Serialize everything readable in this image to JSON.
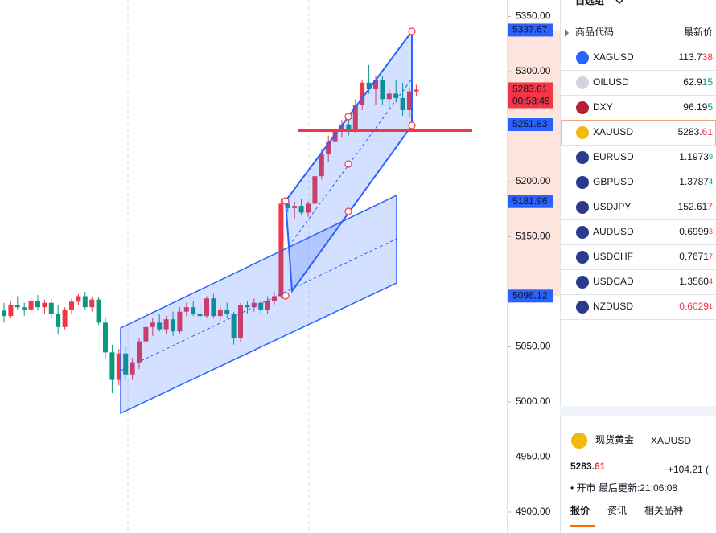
{
  "chart_data": {
    "type": "candlestick",
    "up_color": "#f23645",
    "down_color": "#089981",
    "ylim": [
      4881,
      5365
    ],
    "yticks": [
      {
        "value": 5350,
        "label": "5350.00"
      },
      {
        "value": 5300,
        "label": "5300.00"
      },
      {
        "value": 5200,
        "label": "5200.00"
      },
      {
        "value": 5150,
        "label": "5150.00"
      },
      {
        "value": 5050,
        "label": "5050.00"
      },
      {
        "value": 5000,
        "label": "5000.00"
      },
      {
        "value": 4950,
        "label": "4950.00"
      },
      {
        "value": 4900,
        "label": "4900.00"
      }
    ],
    "open": [
      5083,
      5078,
      5088,
      5086,
      5084,
      5092,
      5086,
      5090,
      5080,
      5068,
      5084,
      5091,
      5096,
      5086,
      5093,
      5072,
      5045,
      5020,
      5044,
      5025,
      5036,
      5055,
      5068,
      5072,
      5066,
      5075,
      5064,
      5082,
      5086,
      5080,
      5078,
      5094,
      5078,
      5084,
      5080,
      5058,
      5088,
      5086,
      5090,
      5084,
      5092,
      5096,
      5180,
      5176,
      5178,
      5172,
      5180,
      5205,
      5225,
      5236,
      5246,
      5252,
      5248,
      5270,
      5290,
      5284,
      5292,
      5275,
      5280,
      5276,
      5265,
      5282
    ],
    "high": [
      5090,
      5091,
      5096,
      5090,
      5095,
      5097,
      5093,
      5094,
      5088,
      5086,
      5094,
      5098,
      5100,
      5095,
      5095,
      5076,
      5052,
      5048,
      5050,
      5040,
      5058,
      5072,
      5076,
      5080,
      5078,
      5082,
      5086,
      5090,
      5092,
      5086,
      5096,
      5098,
      5088,
      5090,
      5082,
      5090,
      5092,
      5094,
      5092,
      5096,
      5100,
      5185,
      5186,
      5182,
      5184,
      5182,
      5208,
      5230,
      5242,
      5250,
      5256,
      5262,
      5275,
      5292,
      5306,
      5296,
      5296,
      5284,
      5292,
      5290,
      5285,
      5288
    ],
    "low": [
      5072,
      5076,
      5084,
      5078,
      5082,
      5083,
      5080,
      5076,
      5062,
      5066,
      5080,
      5088,
      5084,
      5082,
      5070,
      5040,
      5008,
      5015,
      5020,
      5020,
      5030,
      5052,
      5060,
      5064,
      5062,
      5060,
      5062,
      5078,
      5078,
      5072,
      5076,
      5076,
      5074,
      5076,
      5052,
      5054,
      5080,
      5082,
      5080,
      5080,
      5088,
      5094,
      5172,
      5166,
      5170,
      5168,
      5178,
      5202,
      5218,
      5228,
      5240,
      5242,
      5244,
      5265,
      5280,
      5270,
      5270,
      5266,
      5272,
      5260,
      5258,
      5278
    ],
    "close": [
      5078,
      5088,
      5086,
      5084,
      5092,
      5086,
      5090,
      5080,
      5068,
      5084,
      5091,
      5096,
      5086,
      5093,
      5072,
      5045,
      5020,
      5044,
      5025,
      5036,
      5055,
      5068,
      5072,
      5066,
      5075,
      5064,
      5082,
      5086,
      5080,
      5078,
      5094,
      5078,
      5084,
      5080,
      5058,
      5088,
      5086,
      5090,
      5084,
      5092,
      5096,
      5180,
      5176,
      5178,
      5172,
      5180,
      5205,
      5225,
      5236,
      5246,
      5252,
      5248,
      5270,
      5290,
      5284,
      5292,
      5275,
      5280,
      5276,
      5265,
      5282,
      5283.61
    ],
    "price_labels": [
      5337.67,
      5251.83,
      5181.96,
      5096.12
    ],
    "price_label_color": "#2962ff",
    "last_price": 5283.61,
    "countdown": "00:53:49",
    "last_color": "#f23645"
  },
  "watchlist": {
    "title": "自选组",
    "col_symbol": "商品代码",
    "col_price": "最新价",
    "rows": [
      {
        "symbol": "XAGUSD",
        "price_main": "113.7",
        "price_tail": "38",
        "tail_color": "#f23645",
        "tail_small": false
      },
      {
        "symbol": "OILUSD",
        "price_main": "62.9",
        "price_tail": "15",
        "tail_color": "#089981",
        "tail_small": false
      },
      {
        "symbol": "DXY",
        "price_main": "96.19",
        "price_tail": "5",
        "tail_color": "#089981",
        "tail_small": false
      },
      {
        "symbol": "XAUUSD",
        "price_main": "5283.",
        "price_tail": "61",
        "tail_color": "#f23645",
        "tail_small": false,
        "selected": true
      },
      {
        "symbol": "EURUSD",
        "price_main": "1.1973",
        "price_tail": "9",
        "tail_color": "#089981",
        "tail_small": true
      },
      {
        "symbol": "GBPUSD",
        "price_main": "1.3787",
        "price_tail": "4",
        "tail_color": "#089981",
        "tail_small": true
      },
      {
        "symbol": "USDJPY",
        "price_main": "152.61",
        "price_tail": "7",
        "tail_color": "#f23645",
        "tail_small": false
      },
      {
        "symbol": "AUDUSD",
        "price_main": "0.6999",
        "price_tail": "3",
        "tail_color": "#f23645",
        "tail_small": true
      },
      {
        "symbol": "USDCHF",
        "price_main": "0.7671",
        "price_tail": "7",
        "tail_color": "#f23645",
        "tail_small": true
      },
      {
        "symbol": "USDCAD",
        "price_main": "1.3560",
        "price_tail": "4",
        "tail_color": "#f23645",
        "tail_small": true
      },
      {
        "symbol": "NZDUSD",
        "price_main": "0.6029",
        "price_tail": "1",
        "tail_color": "#f23645",
        "tail_small": true,
        "main_color": "#f23645"
      }
    ]
  },
  "detail": {
    "name": "现货黄金",
    "symbol": "XAUUSD",
    "price_main": "5283.",
    "price_tail": "61",
    "change": "+104.21 (",
    "status": "• 开市",
    "updated": "最后更新:21:06:08",
    "tabs": [
      "报价",
      "资讯",
      "相关品种"
    ]
  }
}
